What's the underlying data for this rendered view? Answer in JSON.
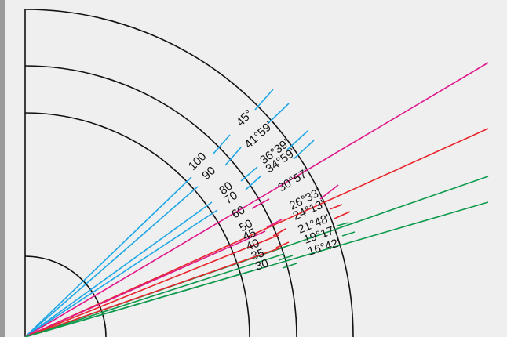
{
  "colors": {
    "background": "#efefef",
    "border": "#9a9a9a",
    "arc": "#111111",
    "blue": "#1ea7e6",
    "magenta": "#e0188a",
    "red": "#e8252b",
    "green": "#0e9a4c"
  },
  "rays": [
    {
      "id": "blue-long-1",
      "color": "blue"
    },
    {
      "id": "blue-long-2",
      "color": "blue"
    },
    {
      "id": "blue-long-3",
      "color": "blue"
    },
    {
      "id": "blue-long-4",
      "color": "blue"
    },
    {
      "id": "magenta-long",
      "color": "magenta"
    },
    {
      "id": "red-long-1",
      "color": "red"
    },
    {
      "id": "green-long-1",
      "color": "green"
    },
    {
      "id": "green-long-2",
      "color": "green"
    },
    {
      "id": "magenta-short",
      "color": "magenta"
    },
    {
      "id": "red-short-1",
      "color": "red"
    },
    {
      "id": "red-short-2",
      "color": "red"
    },
    {
      "id": "green-short-1",
      "color": "green"
    },
    {
      "id": "green-short-2",
      "color": "green"
    }
  ],
  "labels": {
    "inner": [
      "100",
      "90",
      "80",
      "70",
      "60",
      "50",
      "45",
      "40",
      "35",
      "30"
    ],
    "outer": [
      "45°",
      "41°59'",
      "36°39'",
      "34°59'",
      "30°57'",
      "26°33'",
      "24°13'",
      "21°48'",
      "19°17'",
      "16°42'"
    ]
  }
}
